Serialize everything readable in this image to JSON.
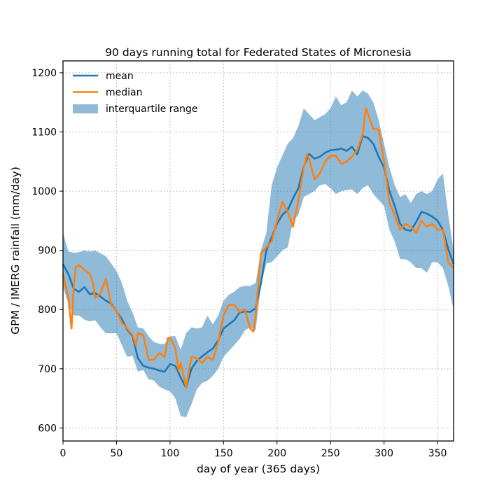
{
  "chart_data": {
    "type": "line",
    "title": "90 days running total for Federated States of Micronesia",
    "xlabel": "day of year (365 days)",
    "ylabel": "GPM / IMERG rainfall (mm/day)",
    "xlim": [
      0,
      365
    ],
    "ylim": [
      578,
      1220
    ],
    "xticks": [
      0,
      50,
      100,
      150,
      200,
      250,
      300,
      350
    ],
    "yticks": [
      600,
      700,
      800,
      900,
      1000,
      1100,
      1200
    ],
    "grid": true,
    "legend": {
      "placement": "top-left",
      "entries": [
        {
          "label": "mean",
          "type": "line",
          "color": "#1f77b4"
        },
        {
          "label": "median",
          "type": "line",
          "color": "#ff7f0e"
        },
        {
          "label": "interquartile range",
          "type": "band",
          "color": "#1f77b4"
        }
      ]
    },
    "series": [
      {
        "name": "mean",
        "color": "#1f77b4",
        "x": [
          0,
          5,
          10,
          15,
          20,
          25,
          30,
          35,
          40,
          45,
          50,
          55,
          60,
          65,
          70,
          75,
          80,
          85,
          90,
          95,
          100,
          105,
          110,
          115,
          120,
          125,
          130,
          135,
          140,
          145,
          150,
          155,
          160,
          165,
          170,
          175,
          180,
          185,
          190,
          195,
          200,
          205,
          210,
          215,
          220,
          225,
          230,
          235,
          240,
          245,
          250,
          255,
          260,
          265,
          270,
          275,
          280,
          285,
          290,
          295,
          300,
          305,
          310,
          315,
          320,
          325,
          330,
          335,
          340,
          345,
          350,
          355,
          360,
          365
        ],
        "values": [
          877,
          860,
          835,
          830,
          838,
          826,
          828,
          822,
          815,
          810,
          797,
          784,
          766,
          755,
          718,
          705,
          702,
          700,
          697,
          695,
          708,
          705,
          685,
          668,
          700,
          713,
          721,
          728,
          734,
          748,
          768,
          775,
          782,
          795,
          797,
          796,
          802,
          845,
          900,
          922,
          945,
          960,
          968,
          988,
          1005,
          1042,
          1063,
          1055,
          1058,
          1065,
          1069,
          1070,
          1072,
          1068,
          1075,
          1062,
          1093,
          1090,
          1080,
          1058,
          1040,
          1000,
          975,
          945,
          935,
          933,
          948,
          965,
          962,
          957,
          950,
          935,
          902,
          877
        ]
      },
      {
        "name": "median",
        "color": "#ff7f0e",
        "x": [
          0,
          5,
          8,
          10,
          12,
          15,
          20,
          25,
          28,
          30,
          35,
          40,
          45,
          50,
          55,
          60,
          65,
          68,
          70,
          75,
          80,
          85,
          90,
          95,
          98,
          100,
          105,
          108,
          110,
          115,
          120,
          125,
          130,
          135,
          140,
          145,
          150,
          155,
          160,
          165,
          170,
          175,
          178,
          180,
          185,
          190,
          195,
          200,
          205,
          210,
          215,
          220,
          225,
          228,
          230,
          235,
          240,
          245,
          250,
          255,
          260,
          265,
          270,
          275,
          280,
          283,
          285,
          290,
          295,
          300,
          305,
          310,
          315,
          320,
          325,
          330,
          335,
          340,
          345,
          350,
          355,
          360,
          365
        ],
        "values": [
          860,
          820,
          768,
          840,
          872,
          875,
          867,
          860,
          845,
          820,
          827,
          852,
          808,
          798,
          778,
          768,
          757,
          740,
          760,
          757,
          715,
          715,
          727,
          720,
          752,
          752,
          735,
          697,
          710,
          668,
          720,
          718,
          710,
          720,
          715,
          745,
          790,
          808,
          808,
          796,
          800,
          768,
          763,
          790,
          895,
          905,
          915,
          950,
          982,
          965,
          940,
          985,
          1040,
          1062,
          1055,
          1020,
          1030,
          1050,
          1060,
          1060,
          1046,
          1050,
          1058,
          1070,
          1095,
          1140,
          1130,
          1105,
          1104,
          1050,
          980,
          960,
          935,
          945,
          940,
          930,
          950,
          940,
          945,
          935,
          935,
          880,
          870
        ]
      }
    ],
    "band": {
      "name": "interquartile range",
      "color": "#1f77b4",
      "opacity": 0.5,
      "x": [
        0,
        5,
        10,
        15,
        20,
        25,
        30,
        35,
        40,
        45,
        50,
        55,
        60,
        65,
        70,
        75,
        80,
        85,
        90,
        95,
        100,
        105,
        110,
        115,
        120,
        125,
        130,
        135,
        140,
        145,
        150,
        155,
        160,
        165,
        170,
        175,
        180,
        185,
        190,
        195,
        200,
        205,
        210,
        215,
        220,
        225,
        230,
        235,
        240,
        245,
        250,
        255,
        260,
        265,
        270,
        275,
        280,
        285,
        290,
        295,
        300,
        305,
        310,
        315,
        320,
        325,
        330,
        335,
        340,
        345,
        350,
        355,
        360,
        365
      ],
      "lower": [
        838,
        810,
        790,
        790,
        783,
        780,
        782,
        770,
        760,
        760,
        760,
        740,
        720,
        722,
        695,
        698,
        682,
        680,
        670,
        665,
        662,
        650,
        620,
        618,
        640,
        665,
        676,
        680,
        688,
        700,
        720,
        730,
        740,
        750,
        765,
        770,
        765,
        840,
        878,
        880,
        890,
        900,
        905,
        950,
        960,
        990,
        995,
        1000,
        1010,
        1012,
        1005,
        995,
        1000,
        1002,
        1003,
        995,
        1005,
        1010,
        995,
        985,
        975,
        935,
        915,
        885,
        885,
        880,
        870,
        870,
        862,
        880,
        880,
        870,
        840,
        800
      ],
      "upper": [
        930,
        898,
        896,
        897,
        900,
        898,
        900,
        895,
        890,
        878,
        865,
        845,
        815,
        795,
        770,
        768,
        755,
        745,
        742,
        742,
        755,
        755,
        732,
        760,
        770,
        768,
        770,
        790,
        775,
        790,
        815,
        825,
        830,
        838,
        840,
        840,
        845,
        900,
        930,
        1010,
        1040,
        1060,
        1080,
        1090,
        1110,
        1140,
        1130,
        1120,
        1125,
        1130,
        1140,
        1160,
        1145,
        1150,
        1170,
        1160,
        1170,
        1165,
        1150,
        1120,
        1080,
        1040,
        1010,
        990,
        995,
        980,
        995,
        1000,
        995,
        1000,
        1020,
        1030,
        960,
        900
      ]
    }
  }
}
